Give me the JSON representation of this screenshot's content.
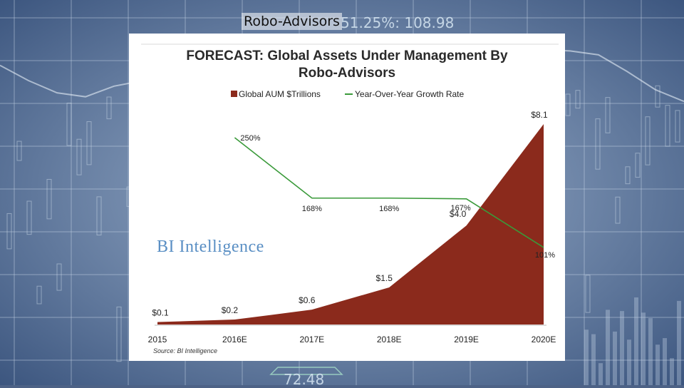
{
  "slide": {
    "title": "Robo-Advisors",
    "background_numbers": [
      "51.25%: 108.98",
      "72.48"
    ]
  },
  "chart_data": {
    "type": "area",
    "title_line1": "FORECAST: Global Assets Under Management By",
    "title_line2": "Robo-Advisors",
    "source": "Source: BI Intelligence",
    "watermark": "BI Intelligence",
    "categories": [
      "2015",
      "2016E",
      "2017E",
      "2018E",
      "2019E",
      "2020E"
    ],
    "legend_position": "top",
    "series": [
      {
        "name": "Global AUM $Trillions",
        "kind": "area",
        "color": "#8b2a1c",
        "values": [
          0.1,
          0.2,
          0.6,
          1.5,
          4.0,
          8.1
        ],
        "labels": [
          "$0.1",
          "$0.2",
          "$0.6",
          "$1.5",
          "$4.0",
          "$8.1"
        ]
      },
      {
        "name": "Year-Over-Year Growth Rate",
        "kind": "line",
        "color": "#3a9a3a",
        "values": [
          null,
          250,
          168,
          168,
          167,
          101
        ],
        "labels": [
          "",
          "250%",
          "168%",
          "168%",
          "167%",
          "101%"
        ]
      }
    ],
    "ylim_aum": [
      0,
      8.1
    ],
    "ylim_growth": [
      101,
      250
    ],
    "grid": false
  }
}
